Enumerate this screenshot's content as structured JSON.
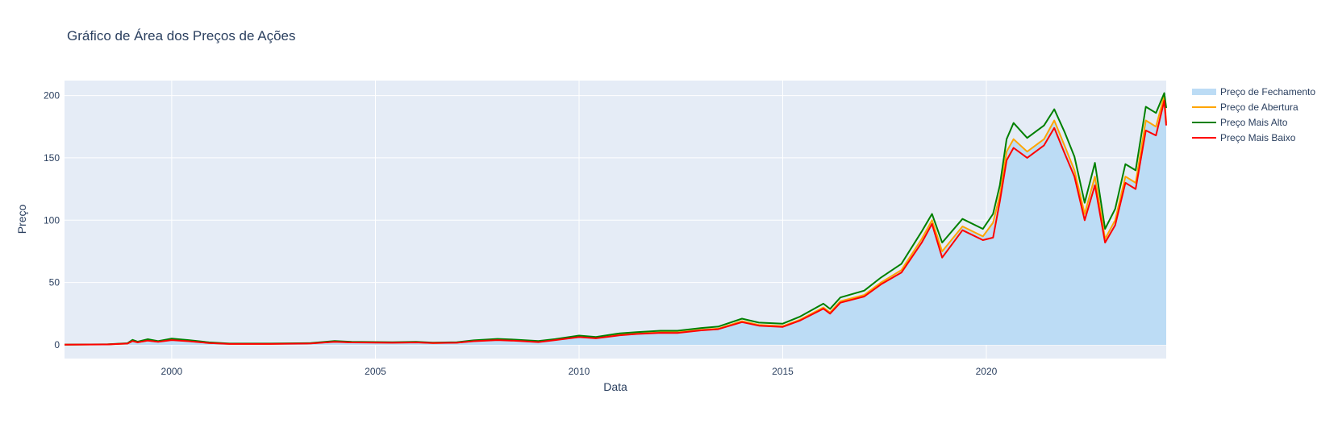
{
  "chart_data": {
    "type": "area",
    "title": "Gráfico de Área dos Preços de Ações",
    "xlabel": "Data",
    "ylabel": "Preço",
    "xlim": [
      "1997-05-15",
      "2024-06-01"
    ],
    "ylim": [
      -11,
      212
    ],
    "x_ticks": [
      "2000",
      "2005",
      "2010",
      "2015",
      "2020"
    ],
    "y_ticks": [
      "0",
      "50",
      "100",
      "150",
      "200"
    ],
    "grid": true,
    "legend_position": "right",
    "colors": {
      "plot_bg": "#e5ecf6",
      "grid": "#ffffff",
      "area_fill": "#bcdcf5",
      "open": "#ffa500",
      "high": "#008000",
      "low": "#ff0000"
    },
    "series": [
      {
        "name": "Preço de Fechamento",
        "style": "area",
        "color": "#bcdcf5",
        "points": [
          [
            "1997-05-15",
            0.1
          ],
          [
            "1998-06-01",
            0.3
          ],
          [
            "1998-12-01",
            1.0
          ],
          [
            "1999-01-15",
            3.0
          ],
          [
            "1999-03-01",
            2.0
          ],
          [
            "1999-06-01",
            3.5
          ],
          [
            "1999-09-01",
            2.5
          ],
          [
            "2000-01-01",
            4.0
          ],
          [
            "2000-06-01",
            3.0
          ],
          [
            "2000-12-01",
            1.5
          ],
          [
            "2001-06-01",
            0.8
          ],
          [
            "2002-06-01",
            0.8
          ],
          [
            "2003-06-01",
            1.2
          ],
          [
            "2004-01-01",
            2.5
          ],
          [
            "2004-06-01",
            2.0
          ],
          [
            "2005-06-01",
            1.8
          ],
          [
            "2006-01-01",
            2.0
          ],
          [
            "2006-06-01",
            1.5
          ],
          [
            "2007-01-01",
            1.8
          ],
          [
            "2007-06-01",
            3.0
          ],
          [
            "2008-01-01",
            4.0
          ],
          [
            "2008-06-01",
            3.5
          ],
          [
            "2009-01-01",
            2.5
          ],
          [
            "2009-06-01",
            4.0
          ],
          [
            "2010-01-01",
            6.5
          ],
          [
            "2010-06-01",
            5.5
          ],
          [
            "2011-01-01",
            8.0
          ],
          [
            "2011-06-01",
            9.0
          ],
          [
            "2012-01-01",
            10.0
          ],
          [
            "2012-06-01",
            10.0
          ],
          [
            "2013-01-01",
            12.0
          ],
          [
            "2013-06-01",
            13.0
          ],
          [
            "2014-01-01",
            19.0
          ],
          [
            "2014-06-01",
            16.0
          ],
          [
            "2015-01-01",
            15.0
          ],
          [
            "2015-06-01",
            20.0
          ],
          [
            "2016-01-01",
            30.0
          ],
          [
            "2016-03-01",
            26.0
          ],
          [
            "2016-06-01",
            35.0
          ],
          [
            "2017-01-01",
            40.0
          ],
          [
            "2017-06-01",
            50.0
          ],
          [
            "2017-12-01",
            60.0
          ],
          [
            "2018-06-01",
            85.0
          ],
          [
            "2018-09-01",
            100.0
          ],
          [
            "2018-12-01",
            75.0
          ],
          [
            "2019-06-01",
            95.0
          ],
          [
            "2019-12-01",
            87.0
          ],
          [
            "2020-03-01",
            98.0
          ],
          [
            "2020-05-01",
            120.0
          ],
          [
            "2020-07-01",
            155.0
          ],
          [
            "2020-09-01",
            165.0
          ],
          [
            "2021-01-01",
            155.0
          ],
          [
            "2021-06-01",
            165.0
          ],
          [
            "2021-09-01",
            180.0
          ],
          [
            "2021-12-01",
            160.0
          ],
          [
            "2022-03-01",
            140.0
          ],
          [
            "2022-06-01",
            105.0
          ],
          [
            "2022-09-01",
            135.0
          ],
          [
            "2022-12-01",
            85.0
          ],
          [
            "2023-03-01",
            100.0
          ],
          [
            "2023-06-01",
            135.0
          ],
          [
            "2023-09-01",
            130.0
          ],
          [
            "2023-12-01",
            180.0
          ],
          [
            "2024-03-01",
            175.0
          ],
          [
            "2024-05-15",
            200.0
          ],
          [
            "2024-06-01",
            178.0
          ]
        ]
      },
      {
        "name": "Preço de Abertura",
        "style": "line",
        "color": "#ffa500",
        "points": [
          [
            "1997-05-15",
            0.1
          ],
          [
            "1998-06-01",
            0.3
          ],
          [
            "1998-12-01",
            1.0
          ],
          [
            "1999-01-15",
            3.0
          ],
          [
            "1999-03-01",
            2.0
          ],
          [
            "1999-06-01",
            3.5
          ],
          [
            "1999-09-01",
            2.5
          ],
          [
            "2000-01-01",
            4.0
          ],
          [
            "2000-06-01",
            3.0
          ],
          [
            "2000-12-01",
            1.5
          ],
          [
            "2001-06-01",
            0.8
          ],
          [
            "2002-06-01",
            0.8
          ],
          [
            "2003-06-01",
            1.2
          ],
          [
            "2004-01-01",
            2.5
          ],
          [
            "2004-06-01",
            2.0
          ],
          [
            "2005-06-01",
            1.8
          ],
          [
            "2006-01-01",
            2.0
          ],
          [
            "2006-06-01",
            1.5
          ],
          [
            "2007-01-01",
            1.8
          ],
          [
            "2007-06-01",
            3.0
          ],
          [
            "2008-01-01",
            4.0
          ],
          [
            "2008-06-01",
            3.5
          ],
          [
            "2009-01-01",
            2.5
          ],
          [
            "2009-06-01",
            4.0
          ],
          [
            "2010-01-01",
            6.5
          ],
          [
            "2010-06-01",
            5.5
          ],
          [
            "2011-01-01",
            8.0
          ],
          [
            "2011-06-01",
            9.0
          ],
          [
            "2012-01-01",
            10.0
          ],
          [
            "2012-06-01",
            10.0
          ],
          [
            "2013-01-01",
            12.0
          ],
          [
            "2013-06-01",
            13.0
          ],
          [
            "2014-01-01",
            19.0
          ],
          [
            "2014-06-01",
            16.0
          ],
          [
            "2015-01-01",
            15.0
          ],
          [
            "2015-06-01",
            20.0
          ],
          [
            "2016-01-01",
            30.0
          ],
          [
            "2016-03-01",
            26.0
          ],
          [
            "2016-06-01",
            35.0
          ],
          [
            "2017-01-01",
            40.0
          ],
          [
            "2017-06-01",
            50.0
          ],
          [
            "2017-12-01",
            60.0
          ],
          [
            "2018-06-01",
            85.0
          ],
          [
            "2018-09-01",
            100.0
          ],
          [
            "2018-12-01",
            75.0
          ],
          [
            "2019-06-01",
            95.0
          ],
          [
            "2019-12-01",
            87.0
          ],
          [
            "2020-03-01",
            98.0
          ],
          [
            "2020-05-01",
            120.0
          ],
          [
            "2020-07-01",
            155.0
          ],
          [
            "2020-09-01",
            165.0
          ],
          [
            "2021-01-01",
            155.0
          ],
          [
            "2021-06-01",
            165.0
          ],
          [
            "2021-09-01",
            180.0
          ],
          [
            "2021-12-01",
            160.0
          ],
          [
            "2022-03-01",
            140.0
          ],
          [
            "2022-06-01",
            105.0
          ],
          [
            "2022-09-01",
            135.0
          ],
          [
            "2022-12-01",
            85.0
          ],
          [
            "2023-03-01",
            100.0
          ],
          [
            "2023-06-01",
            135.0
          ],
          [
            "2023-09-01",
            130.0
          ],
          [
            "2023-12-01",
            180.0
          ],
          [
            "2024-03-01",
            175.0
          ],
          [
            "2024-05-15",
            200.0
          ],
          [
            "2024-06-01",
            178.0
          ]
        ]
      },
      {
        "name": "Preço Mais Alto",
        "style": "line",
        "color": "#008000",
        "points": [
          [
            "1997-05-15",
            0.2
          ],
          [
            "1998-06-01",
            0.4
          ],
          [
            "1998-12-01",
            1.3
          ],
          [
            "1999-01-15",
            4.0
          ],
          [
            "1999-03-01",
            2.5
          ],
          [
            "1999-06-01",
            4.5
          ],
          [
            "1999-09-01",
            3.0
          ],
          [
            "2000-01-01",
            5.0
          ],
          [
            "2000-06-01",
            3.8
          ],
          [
            "2000-12-01",
            2.0
          ],
          [
            "2001-06-01",
            1.0
          ],
          [
            "2002-06-01",
            1.0
          ],
          [
            "2003-06-01",
            1.4
          ],
          [
            "2004-01-01",
            3.0
          ],
          [
            "2004-06-01",
            2.4
          ],
          [
            "2005-06-01",
            2.1
          ],
          [
            "2006-01-01",
            2.4
          ],
          [
            "2006-06-01",
            1.8
          ],
          [
            "2007-01-01",
            2.1
          ],
          [
            "2007-06-01",
            3.6
          ],
          [
            "2008-01-01",
            4.8
          ],
          [
            "2008-06-01",
            4.2
          ],
          [
            "2009-01-01",
            3.0
          ],
          [
            "2009-06-01",
            4.6
          ],
          [
            "2010-01-01",
            7.4
          ],
          [
            "2010-06-01",
            6.3
          ],
          [
            "2011-01-01",
            9.2
          ],
          [
            "2011-06-01",
            10.2
          ],
          [
            "2012-01-01",
            11.3
          ],
          [
            "2012-06-01",
            11.3
          ],
          [
            "2013-01-01",
            13.5
          ],
          [
            "2013-06-01",
            14.6
          ],
          [
            "2014-01-01",
            21.0
          ],
          [
            "2014-06-01",
            17.8
          ],
          [
            "2015-01-01",
            17.0
          ],
          [
            "2015-06-01",
            22.5
          ],
          [
            "2016-01-01",
            33.0
          ],
          [
            "2016-03-01",
            28.8
          ],
          [
            "2016-06-01",
            38.0
          ],
          [
            "2017-01-01",
            43.5
          ],
          [
            "2017-06-01",
            54.0
          ],
          [
            "2017-12-01",
            65.0
          ],
          [
            "2018-06-01",
            91.0
          ],
          [
            "2018-09-01",
            105.0
          ],
          [
            "2018-12-01",
            82.0
          ],
          [
            "2019-06-01",
            101.0
          ],
          [
            "2019-12-01",
            93.0
          ],
          [
            "2020-03-01",
            105.0
          ],
          [
            "2020-05-01",
            128.0
          ],
          [
            "2020-07-01",
            165.0
          ],
          [
            "2020-09-01",
            178.0
          ],
          [
            "2021-01-01",
            166.0
          ],
          [
            "2021-06-01",
            176.0
          ],
          [
            "2021-09-01",
            189.0
          ],
          [
            "2021-12-01",
            171.0
          ],
          [
            "2022-03-01",
            151.0
          ],
          [
            "2022-06-01",
            114.0
          ],
          [
            "2022-09-01",
            146.0
          ],
          [
            "2022-12-01",
            93.0
          ],
          [
            "2023-03-01",
            109.0
          ],
          [
            "2023-06-01",
            145.0
          ],
          [
            "2023-09-01",
            140.0
          ],
          [
            "2023-12-01",
            191.0
          ],
          [
            "2024-03-01",
            186.0
          ],
          [
            "2024-05-15",
            202.0
          ],
          [
            "2024-06-01",
            190.0
          ]
        ]
      },
      {
        "name": "Preço Mais Baixo",
        "style": "line",
        "color": "#ff0000",
        "points": [
          [
            "1997-05-15",
            0.1
          ],
          [
            "1998-06-01",
            0.3
          ],
          [
            "1998-12-01",
            1.0
          ],
          [
            "1999-01-15",
            3.0
          ],
          [
            "1999-03-01",
            2.0
          ],
          [
            "1999-06-01",
            3.4
          ],
          [
            "1999-09-01",
            2.4
          ],
          [
            "2000-01-01",
            3.8
          ],
          [
            "2000-06-01",
            2.9
          ],
          [
            "2000-12-01",
            1.4
          ],
          [
            "2001-06-01",
            0.7
          ],
          [
            "2002-06-01",
            0.7
          ],
          [
            "2003-06-01",
            1.1
          ],
          [
            "2004-01-01",
            2.4
          ],
          [
            "2004-06-01",
            1.9
          ],
          [
            "2005-06-01",
            1.7
          ],
          [
            "2006-01-01",
            1.9
          ],
          [
            "2006-06-01",
            1.4
          ],
          [
            "2007-01-01",
            1.7
          ],
          [
            "2007-06-01",
            2.9
          ],
          [
            "2008-01-01",
            3.8
          ],
          [
            "2008-06-01",
            3.3
          ],
          [
            "2009-01-01",
            2.2
          ],
          [
            "2009-06-01",
            3.8
          ],
          [
            "2010-01-01",
            6.2
          ],
          [
            "2010-06-01",
            5.2
          ],
          [
            "2011-01-01",
            7.7
          ],
          [
            "2011-06-01",
            8.7
          ],
          [
            "2012-01-01",
            9.6
          ],
          [
            "2012-06-01",
            9.5
          ],
          [
            "2013-01-01",
            11.6
          ],
          [
            "2013-06-01",
            12.5
          ],
          [
            "2014-01-01",
            18.2
          ],
          [
            "2014-06-01",
            15.4
          ],
          [
            "2015-01-01",
            14.4
          ],
          [
            "2015-06-01",
            19.3
          ],
          [
            "2016-01-01",
            29.0
          ],
          [
            "2016-03-01",
            25.0
          ],
          [
            "2016-06-01",
            33.8
          ],
          [
            "2017-01-01",
            38.8
          ],
          [
            "2017-06-01",
            48.5
          ],
          [
            "2017-12-01",
            58.0
          ],
          [
            "2018-06-01",
            82.0
          ],
          [
            "2018-09-01",
            97.0
          ],
          [
            "2018-12-01",
            70.0
          ],
          [
            "2019-06-01",
            92.0
          ],
          [
            "2019-12-01",
            84.0
          ],
          [
            "2020-03-01",
            86.0
          ],
          [
            "2020-05-01",
            115.0
          ],
          [
            "2020-07-01",
            148.0
          ],
          [
            "2020-09-01",
            158.0
          ],
          [
            "2021-01-01",
            150.0
          ],
          [
            "2021-06-01",
            160.0
          ],
          [
            "2021-09-01",
            174.0
          ],
          [
            "2021-12-01",
            154.0
          ],
          [
            "2022-03-01",
            135.0
          ],
          [
            "2022-06-01",
            100.0
          ],
          [
            "2022-09-01",
            128.0
          ],
          [
            "2022-12-01",
            82.0
          ],
          [
            "2023-03-01",
            96.0
          ],
          [
            "2023-06-01",
            130.0
          ],
          [
            "2023-09-01",
            125.0
          ],
          [
            "2023-12-01",
            172.0
          ],
          [
            "2024-03-01",
            168.0
          ],
          [
            "2024-05-15",
            196.0
          ],
          [
            "2024-06-01",
            176.0
          ]
        ]
      }
    ]
  }
}
